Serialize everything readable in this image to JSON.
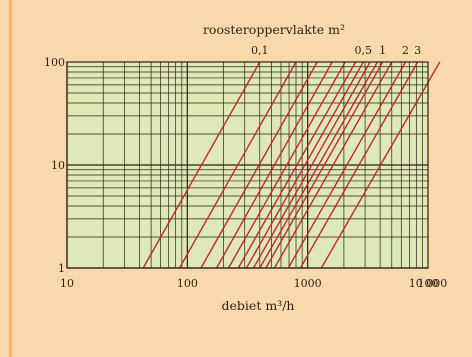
{
  "chart_data": {
    "type": "line",
    "title": "roosteroppervlakte m²",
    "xlabel": "debiet m³/h",
    "ylabel": "",
    "x_scale": "log",
    "y_scale": "log",
    "xlim": [
      10,
      10000
    ],
    "ylim": [
      1,
      100
    ],
    "grid": true,
    "x_tick_labels": [
      "10",
      "100",
      "1000",
      "10 000",
      "100"
    ],
    "y_tick_labels": [
      "1",
      "10",
      "100"
    ],
    "area_labels": [
      "0,1",
      "0,5",
      "1",
      "2",
      "3"
    ],
    "series": [
      {
        "x": [
          43,
          400
        ],
        "y": [
          1,
          100
        ]
      },
      {
        "x": [
          86,
          800
        ],
        "y": [
          1,
          100
        ]
      },
      {
        "x": [
          130,
          1200
        ],
        "y": [
          1,
          100
        ]
      },
      {
        "x": [
          175,
          1600
        ],
        "y": [
          1,
          100
        ]
      },
      {
        "x": [
          220,
          2050
        ],
        "y": [
          1,
          100
        ]
      },
      {
        "x": [
          265,
          2500
        ],
        "y": [
          1,
          100
        ]
      },
      {
        "x": [
          310,
          2900
        ],
        "y": [
          1,
          100
        ]
      },
      {
        "x": [
          355,
          3300
        ],
        "y": [
          1,
          100
        ]
      },
      {
        "x": [
          400,
          3800
        ],
        "y": [
          1,
          100
        ]
      },
      {
        "x": [
          450,
          4200
        ],
        "y": [
          1,
          100
        ]
      },
      {
        "x": [
          530,
          5000
        ],
        "y": [
          1,
          100
        ]
      },
      {
        "x": [
          690,
          6500
        ],
        "y": [
          1,
          100
        ]
      },
      {
        "x": [
          870,
          8200
        ],
        "y": [
          1,
          100
        ]
      },
      {
        "x": [
          1300,
          12500
        ],
        "y": [
          1,
          100
        ]
      }
    ],
    "colors": {
      "line": "#c2272d",
      "plot_bg": "#dfe9b8",
      "grid": "#2a1e14"
    }
  }
}
